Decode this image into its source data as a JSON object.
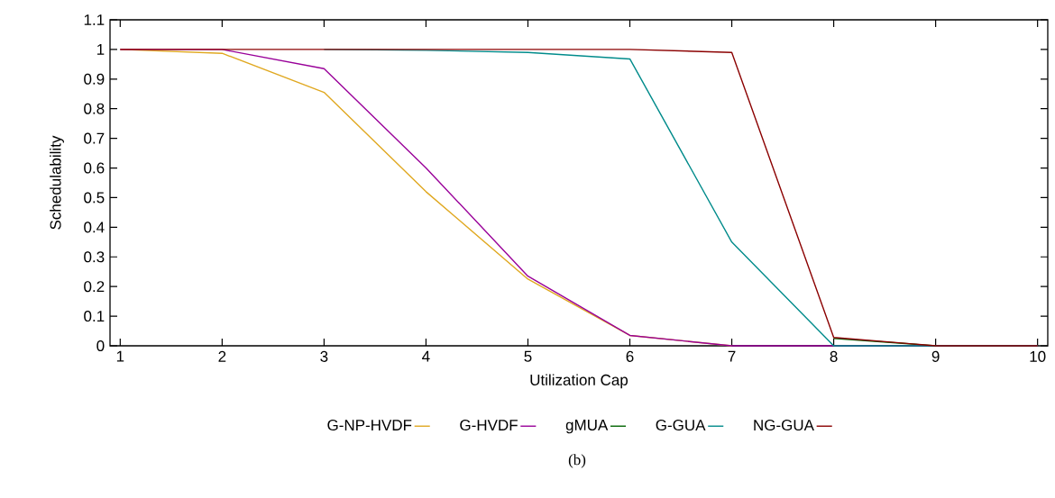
{
  "chart_data": {
    "type": "line",
    "xlabel": "Utilization Cap",
    "ylabel": "Schedulability",
    "x": [
      1,
      2,
      3,
      4,
      5,
      6,
      7,
      8,
      9,
      10
    ],
    "series": [
      {
        "name": "G-NP-HVDF",
        "color": "#e0a820",
        "values": [
          1,
          0.987,
          0.855,
          0.52,
          0.225,
          0.035,
          0,
          null,
          null,
          null
        ]
      },
      {
        "name": "G-HVDF",
        "color": "#990099",
        "values": [
          1,
          1,
          0.935,
          0.6,
          0.235,
          0.035,
          0,
          0,
          0,
          0
        ]
      },
      {
        "name": "gMUA",
        "color": "#006400",
        "values": [
          null,
          null,
          null,
          null,
          null,
          null,
          null,
          0.025,
          0,
          null
        ]
      },
      {
        "name": "G-GUA",
        "color": "#008b8b",
        "values": [
          null,
          null,
          1,
          0.997,
          0.99,
          0.968,
          0.35,
          0,
          0,
          0
        ]
      },
      {
        "name": "NG-GUA",
        "color": "#8b0000",
        "values": [
          1,
          1,
          1,
          1,
          1,
          1,
          0.99,
          0.028,
          0,
          0
        ]
      }
    ],
    "xlim": [
      0.9,
      10.1
    ],
    "ylim": [
      0,
      1.1
    ],
    "xticks": [
      1,
      2,
      3,
      4,
      5,
      6,
      7,
      8,
      9,
      10
    ],
    "yticks": [
      0,
      0.1,
      0.2,
      0.3,
      0.4,
      0.5,
      0.6,
      0.7,
      0.8,
      0.9,
      1,
      1.1
    ],
    "legend": "bottom",
    "annotations": [
      "(b)"
    ]
  }
}
